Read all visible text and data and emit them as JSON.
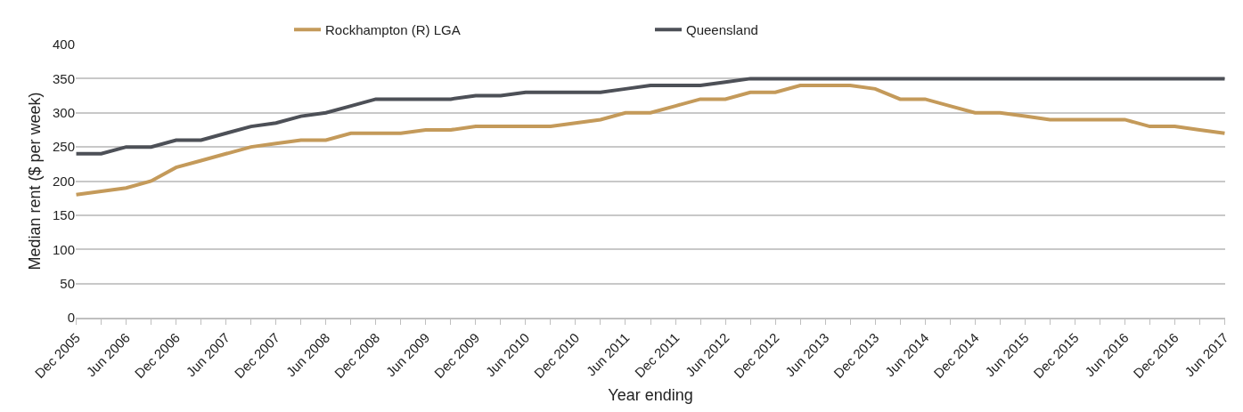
{
  "chart_data": {
    "type": "line",
    "xlabel": "Year ending",
    "ylabel": "Median rent ($ per week)",
    "categories": [
      "Dec 2005",
      null,
      "Jun 2006",
      null,
      "Dec 2006",
      null,
      "Jun 2007",
      null,
      "Dec 2007",
      null,
      "Jun 2008",
      null,
      "Dec 2008",
      null,
      "Jun 2009",
      null,
      "Dec 2009",
      null,
      "Jun 2010",
      null,
      "Dec 2010",
      null,
      "Jun 2011",
      null,
      "Dec 2011",
      null,
      "Jun 2012",
      null,
      "Dec 2012",
      null,
      "Jun 2013",
      null,
      "Dec 2013",
      null,
      "Jun 2014",
      null,
      "Dec 2014",
      null,
      "Jun 2015",
      null,
      "Dec 2015",
      null,
      "Jun 2016",
      null,
      "Dec 2016",
      null,
      "Jun 2017"
    ],
    "series": [
      {
        "name": "Rockhampton (R) LGA",
        "color": "#c49a5a",
        "values": [
          180,
          185,
          190,
          200,
          220,
          230,
          240,
          250,
          255,
          260,
          260,
          270,
          270,
          270,
          275,
          275,
          280,
          280,
          280,
          280,
          285,
          290,
          300,
          300,
          310,
          320,
          320,
          330,
          330,
          340,
          340,
          340,
          335,
          320,
          320,
          310,
          300,
          300,
          295,
          290,
          290,
          290,
          290,
          280,
          280,
          275,
          270
        ]
      },
      {
        "name": "Queensland",
        "color": "#4d5057",
        "values": [
          240,
          240,
          250,
          250,
          260,
          260,
          270,
          280,
          285,
          295,
          300,
          310,
          320,
          320,
          320,
          320,
          325,
          325,
          330,
          330,
          330,
          330,
          335,
          340,
          340,
          340,
          345,
          350,
          350,
          350,
          350,
          350,
          350,
          350,
          350,
          350,
          350,
          350,
          350,
          350,
          350,
          350,
          350,
          350,
          350,
          350,
          350
        ]
      }
    ],
    "ylim": [
      0,
      400
    ],
    "yticks": [
      0,
      50,
      100,
      150,
      200,
      250,
      300,
      350,
      400
    ],
    "grid": "y",
    "legend": "top",
    "marker": "none",
    "line_style": "solid"
  }
}
